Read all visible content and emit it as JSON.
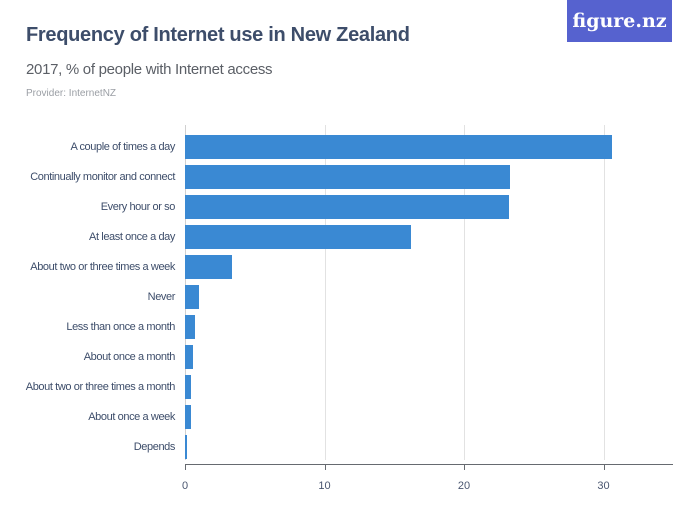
{
  "header": {
    "title": "Frequency of Internet use in New Zealand",
    "subtitle": "2017, % of people with Internet access",
    "provider": "Provider: InternetNZ",
    "logo": "figure.nz"
  },
  "colors": {
    "bar": "#3a89d3",
    "logo_bg": "#5662cf",
    "title": "#3d4d6a"
  },
  "axis": {
    "ticks": [
      "0",
      "10",
      "20",
      "30"
    ]
  },
  "chart_data": {
    "type": "bar",
    "orientation": "horizontal",
    "title": "Frequency of Internet use in New Zealand",
    "subtitle": "2017, % of people with Internet access",
    "xlabel": "",
    "ylabel": "",
    "xlim": [
      0,
      35
    ],
    "grid": true,
    "legend": "none",
    "categories": [
      "A couple of times a day",
      "Continually monitor and connect",
      "Every hour or so",
      "At least once a day",
      "About two or three times a week",
      "Never",
      "Less than once a month",
      "About once a month",
      "About two or three times a month",
      "About once a week",
      "Depends"
    ],
    "values": [
      30.6,
      23.3,
      23.2,
      16.2,
      3.4,
      1.0,
      0.7,
      0.6,
      0.4,
      0.4,
      0.1
    ],
    "tick_labels": [
      "0",
      "10",
      "20",
      "30"
    ]
  }
}
